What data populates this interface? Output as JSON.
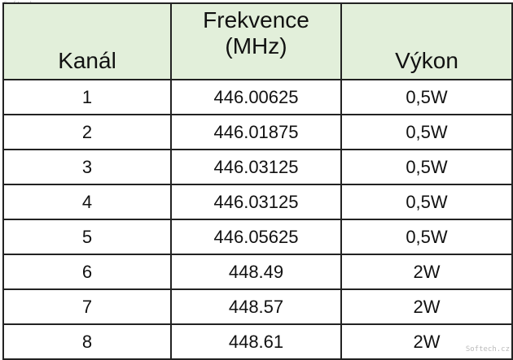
{
  "watermarks": [
    "Softech.cz",
    "Softech.cz"
  ],
  "table": {
    "header": [
      "Kanál",
      "Frekvence (MHz)",
      "Výkon"
    ],
    "rows": [
      [
        "1",
        "446.00625",
        "0,5W"
      ],
      [
        "2",
        "446.01875",
        "0,5W"
      ],
      [
        "3",
        "446.03125",
        "0,5W"
      ],
      [
        "4",
        "446.03125",
        "0,5W"
      ],
      [
        "5",
        "446.05625",
        "0,5W"
      ],
      [
        "6",
        "448.49",
        "2W"
      ],
      [
        "7",
        "448.57",
        "2W"
      ],
      [
        "8",
        "448.61",
        "2W"
      ]
    ]
  }
}
